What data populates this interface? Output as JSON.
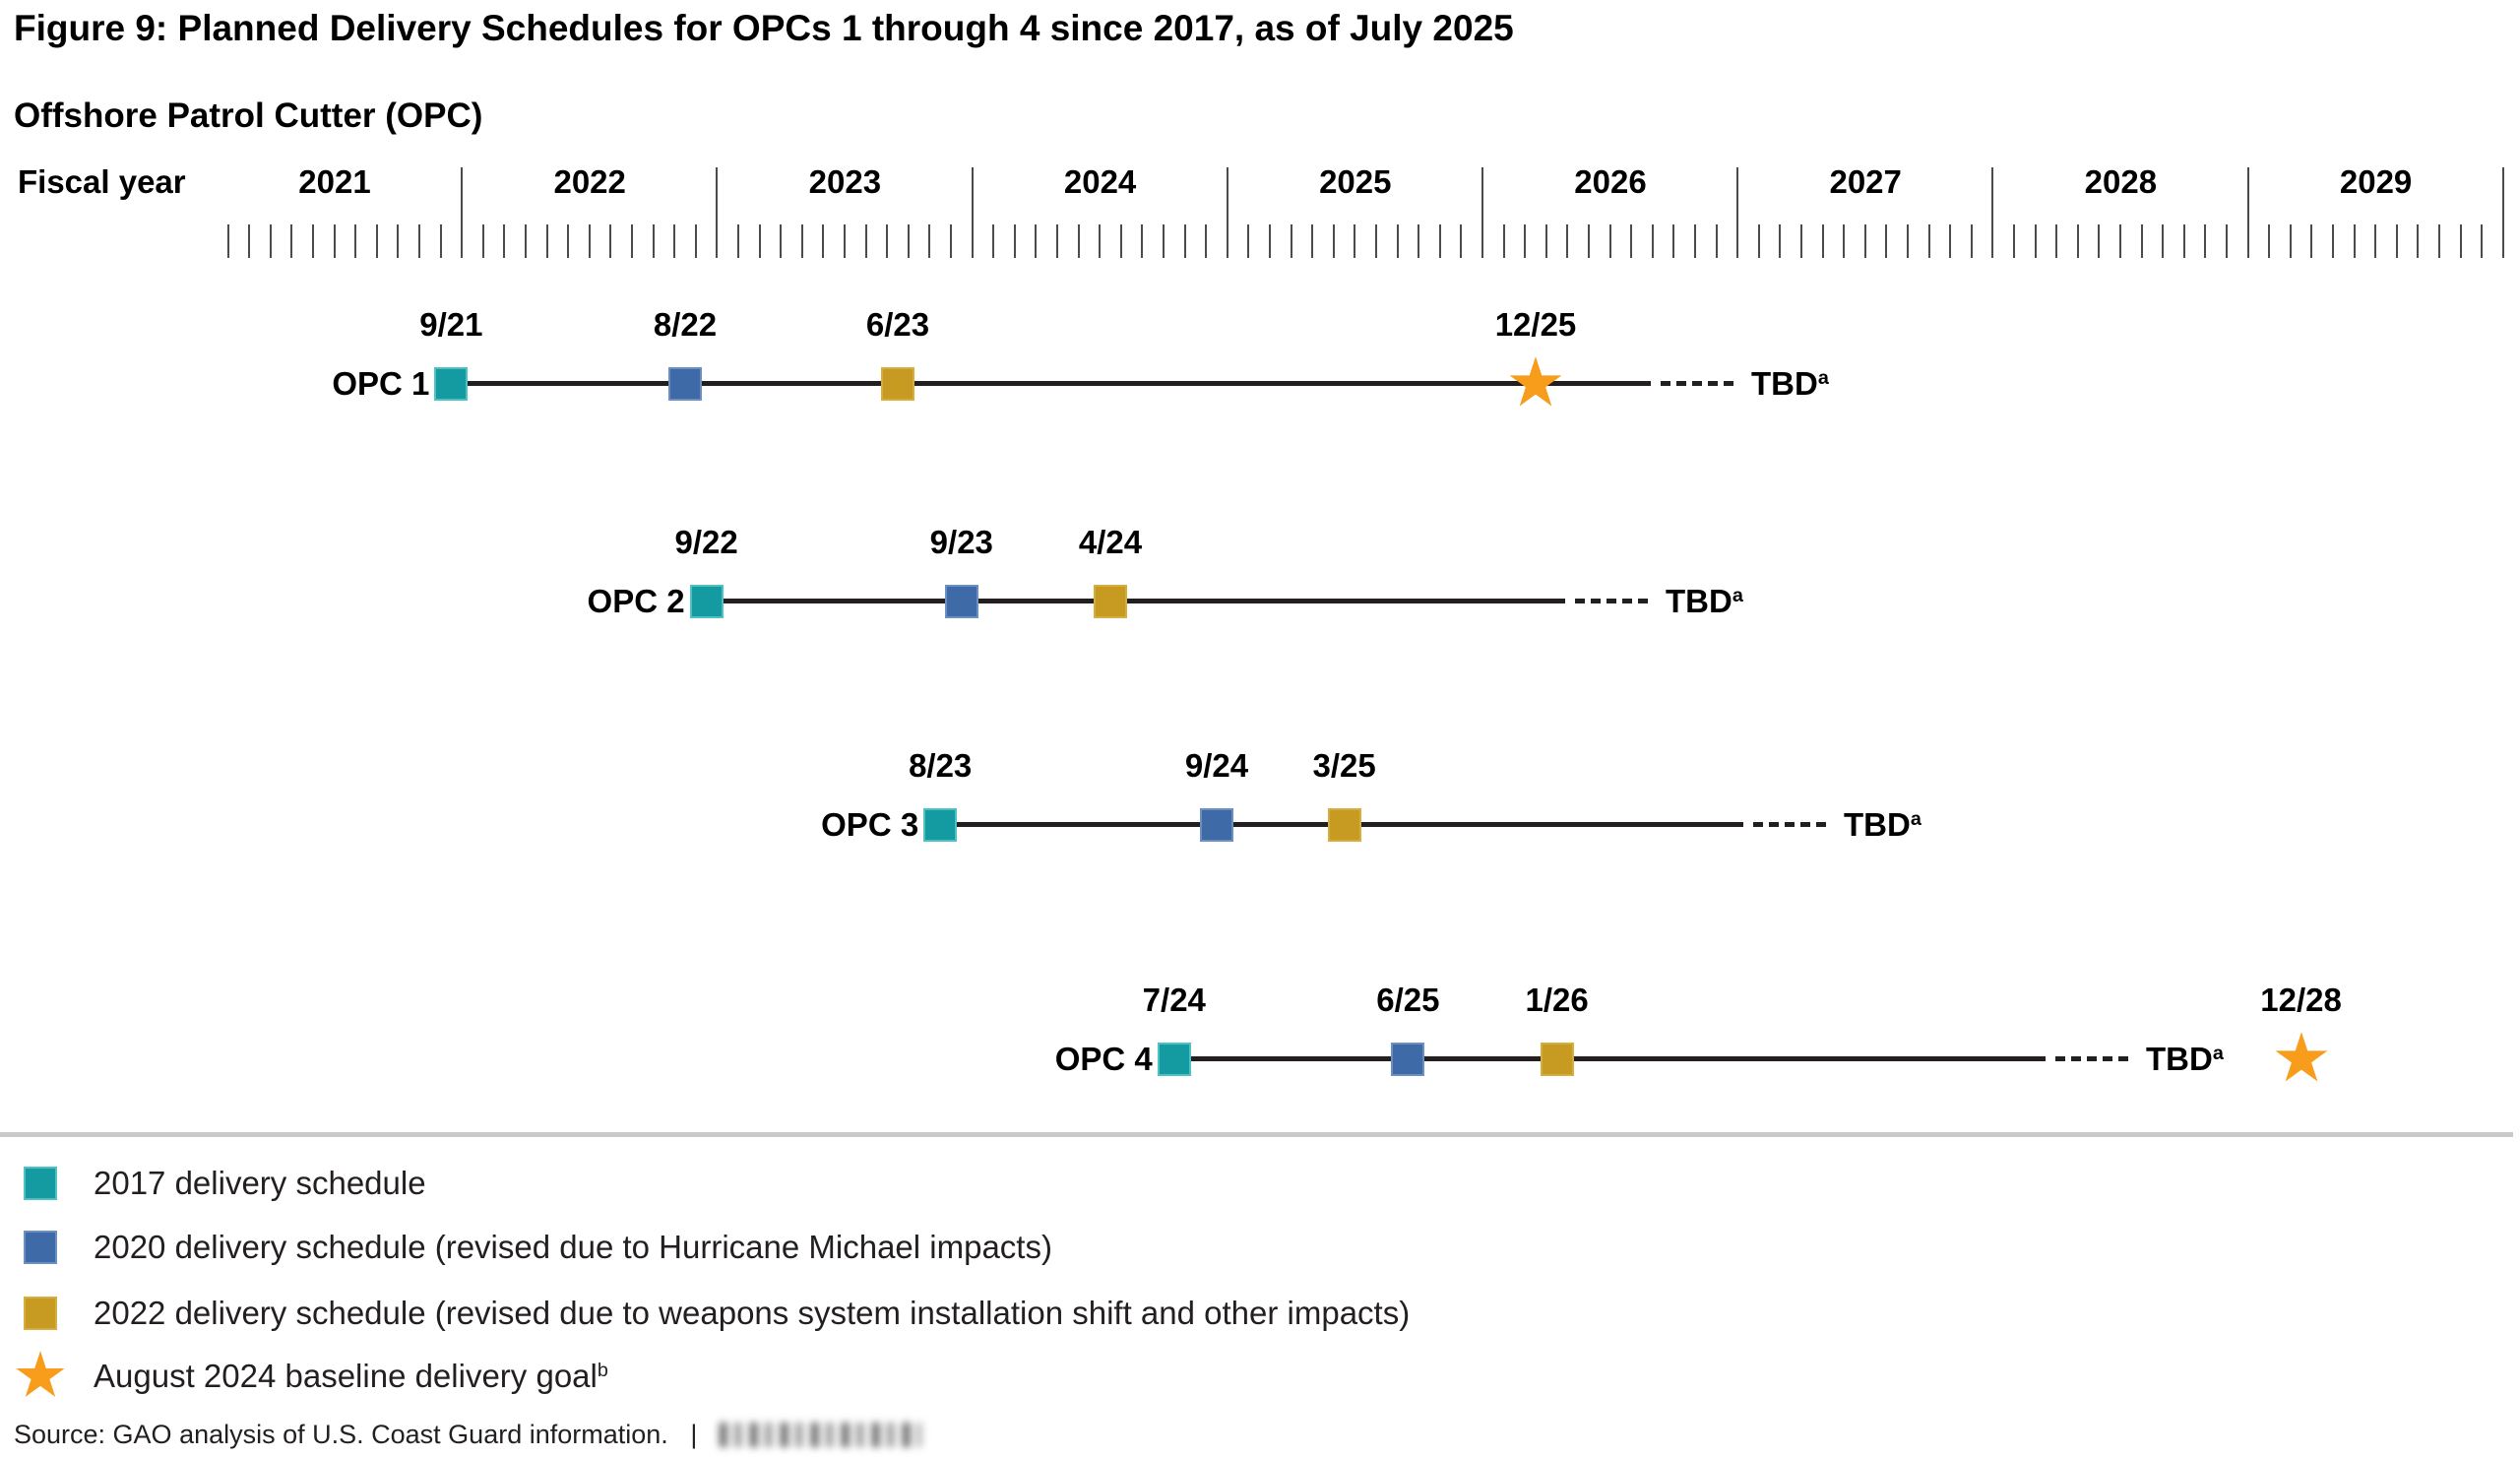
{
  "figure_title": "Figure 9: Planned Delivery Schedules for OPCs 1 through 4 since 2017, as of July 2025",
  "chart_title": "Offshore Patrol Cutter (OPC)",
  "colors": {
    "teal_2017": "#149ba1",
    "blue_2020": "#3e6aa8",
    "gold_2022": "#c79b21",
    "star_orange": "#f89c1c",
    "timeline_black": "#231f20",
    "tick_gray": "#4b4b4d",
    "divider_gray": "#c9cacb"
  },
  "chart_data": {
    "type": "timeline",
    "x_axis": {
      "label": "Fiscal year",
      "years": [
        "2021",
        "2022",
        "2023",
        "2024",
        "2025",
        "2026",
        "2027",
        "2028",
        "2029"
      ],
      "tick_interval": "month",
      "range": [
        "FY2021",
        "FY2029"
      ]
    },
    "rows": [
      {
        "label": "OPC 1",
        "events": [
          {
            "series": "2017",
            "marker": "square",
            "date": "9/21"
          },
          {
            "series": "2020",
            "marker": "square",
            "date": "8/22"
          },
          {
            "series": "2022",
            "marker": "square",
            "date": "6/23"
          },
          {
            "series": "goal",
            "marker": "star",
            "date": "12/25"
          }
        ],
        "end_label": "TBD",
        "end_note": "a"
      },
      {
        "label": "OPC 2",
        "events": [
          {
            "series": "2017",
            "marker": "square",
            "date": "9/22"
          },
          {
            "series": "2020",
            "marker": "square",
            "date": "9/23"
          },
          {
            "series": "2022",
            "marker": "square",
            "date": "4/24"
          }
        ],
        "end_label": "TBD",
        "end_note": "a"
      },
      {
        "label": "OPC 3",
        "events": [
          {
            "series": "2017",
            "marker": "square",
            "date": "8/23"
          },
          {
            "series": "2020",
            "marker": "square",
            "date": "9/24"
          },
          {
            "series": "2022",
            "marker": "square",
            "date": "3/25"
          }
        ],
        "end_label": "TBD",
        "end_note": "a"
      },
      {
        "label": "OPC 4",
        "events": [
          {
            "series": "2017",
            "marker": "square",
            "date": "7/24"
          },
          {
            "series": "2020",
            "marker": "square",
            "date": "6/25"
          },
          {
            "series": "2022",
            "marker": "square",
            "date": "1/26"
          },
          {
            "series": "goal",
            "marker": "star",
            "date": "12/28",
            "detached": true
          }
        ],
        "end_label": "TBD",
        "end_note": "a"
      }
    ],
    "legend": [
      {
        "swatch": "square",
        "series": "2017",
        "label": "2017 delivery schedule"
      },
      {
        "swatch": "square",
        "series": "2020",
        "label": "2020 delivery schedule (revised due to Hurricane Michael impacts)"
      },
      {
        "swatch": "square",
        "series": "2022",
        "label": "2022 delivery schedule (revised due to weapons system installation shift and other impacts)"
      },
      {
        "swatch": "star",
        "series": "goal",
        "label": "August 2024 baseline delivery goal",
        "note": "b"
      }
    ]
  },
  "source": {
    "text": "Source: GAO analysis of U.S. Coast Guard information.",
    "separator": "|",
    "report_id_redacted": true
  }
}
